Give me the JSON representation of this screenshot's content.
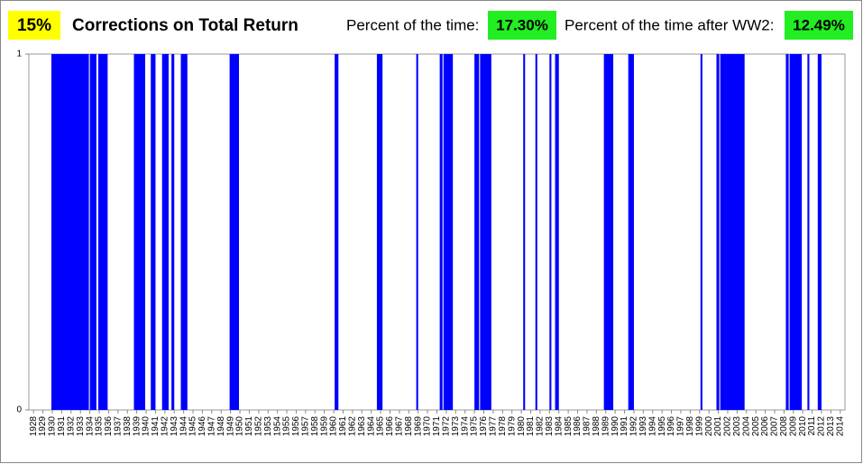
{
  "chart_data": {
    "type": "span",
    "badge": "15%",
    "title": "Corrections on Total Return",
    "stats": [
      {
        "label": "Percent of the time:",
        "value": "17.30%"
      },
      {
        "label": "Percent of the time after WW2:",
        "value": "12.49%"
      }
    ],
    "color": "#0000ff",
    "xlim": [
      1927.5,
      2014.5
    ],
    "xticks": [
      1928,
      1929,
      1930,
      1931,
      1932,
      1933,
      1934,
      1935,
      1936,
      1937,
      1938,
      1939,
      1940,
      1941,
      1942,
      1943,
      1944,
      1945,
      1946,
      1947,
      1948,
      1949,
      1950,
      1951,
      1952,
      1953,
      1954,
      1955,
      1956,
      1957,
      1958,
      1959,
      1960,
      1961,
      1962,
      1963,
      1964,
      1965,
      1966,
      1967,
      1968,
      1969,
      1970,
      1971,
      1972,
      1973,
      1974,
      1975,
      1976,
      1977,
      1978,
      1979,
      1980,
      1981,
      1982,
      1983,
      1984,
      1985,
      1986,
      1987,
      1988,
      1989,
      1990,
      1991,
      1992,
      1993,
      1994,
      1995,
      1996,
      1997,
      1998,
      1999,
      2000,
      2001,
      2002,
      2003,
      2004,
      2005,
      2006,
      2007,
      2008,
      2009,
      2010,
      2011,
      2012,
      2013,
      2014
    ],
    "ylim": [
      0,
      1
    ],
    "yticks": [
      0,
      1
    ],
    "spans": [
      [
        1929.9,
        1933.9
      ],
      [
        1934.0,
        1934.7
      ],
      [
        1934.9,
        1935.9
      ],
      [
        1938.7,
        1939.9
      ],
      [
        1940.5,
        1941.0
      ],
      [
        1941.7,
        1942.4
      ],
      [
        1942.7,
        1943.0
      ],
      [
        1943.7,
        1944.4
      ],
      [
        1948.9,
        1949.9
      ],
      [
        1960.1,
        1960.5
      ],
      [
        1964.6,
        1965.2
      ],
      [
        1968.8,
        1969.0
      ],
      [
        1971.3,
        1971.6
      ],
      [
        1971.7,
        1972.7
      ],
      [
        1975.0,
        1975.5
      ],
      [
        1975.6,
        1976.8
      ],
      [
        1980.2,
        1980.4
      ],
      [
        1981.5,
        1981.7
      ],
      [
        1983.0,
        1983.2
      ],
      [
        1983.6,
        1984.0
      ],
      [
        1988.8,
        1989.8
      ],
      [
        1991.4,
        1992.0
      ],
      [
        1999.1,
        1999.3
      ],
      [
        2000.8,
        2001.1
      ],
      [
        2001.2,
        2003.8
      ],
      [
        2008.2,
        2008.5
      ],
      [
        2008.6,
        2009.9
      ],
      [
        2010.5,
        2010.7
      ],
      [
        2011.6,
        2012.0
      ]
    ]
  }
}
